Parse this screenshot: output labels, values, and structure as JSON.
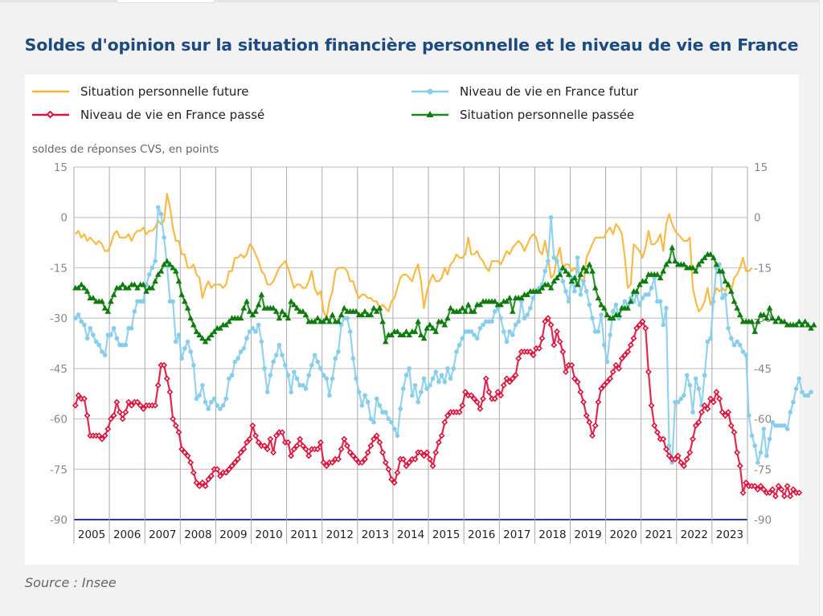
{
  "title": "Soldes d'opinion sur la situation financière personnelle et le niveau de vie en France",
  "source": "Source : Insee",
  "chart_data": {
    "type": "line",
    "title": "Soldes d'opinion sur la situation financière personnelle et le niveau de vie en France",
    "ylabel": "soldes de réponses CVS, en points",
    "xlabel": "",
    "ylim": [
      -90,
      15
    ],
    "yticks": [
      15,
      0,
      -15,
      -30,
      -45,
      -60,
      -75,
      -90
    ],
    "xticks": [
      "2005",
      "2006",
      "2007",
      "2008",
      "2009",
      "2010",
      "2011",
      "2012",
      "2013",
      "2014",
      "2015",
      "2016",
      "2017",
      "2018",
      "2019",
      "2020",
      "2021",
      "2022",
      "2023"
    ],
    "x_start": "2005-01",
    "frequency": "monthly",
    "grid": true,
    "legend": "top",
    "series": [
      {
        "name": "Situation personnelle future",
        "color": "#f9b233",
        "marker": "none",
        "values": [
          -5,
          -4,
          -6,
          -5,
          -7,
          -6,
          -7,
          -8,
          -7,
          -8,
          -10,
          -10,
          -8,
          -5,
          -4,
          -6,
          -6,
          -6,
          -5,
          -7,
          -5,
          -4,
          -4,
          -3,
          -5,
          -4,
          -4,
          -3,
          -1,
          -2,
          -1,
          7,
          3,
          -3,
          -7,
          -7,
          -11,
          -11,
          -15,
          -15,
          -14,
          -17,
          -18,
          -24,
          -21,
          -19,
          -21,
          -20,
          -20,
          -20,
          -21,
          -20,
          -16,
          -16,
          -12,
          -12,
          -11,
          -12,
          -11,
          -8,
          -9,
          -11,
          -13,
          -16,
          -17,
          -20,
          -20,
          -19,
          -17,
          -15,
          -14,
          -13,
          -15,
          -18,
          -21,
          -20,
          -20,
          -21,
          -21,
          -19,
          -16,
          -21,
          -23,
          -22,
          -28,
          -30,
          -25,
          -22,
          -16,
          -15,
          -15,
          -15,
          -16,
          -19,
          -19,
          -22,
          -24,
          -23,
          -23,
          -24,
          -24,
          -25,
          -25,
          -27,
          -26,
          -27,
          -28,
          -25,
          -24,
          -21,
          -18,
          -17,
          -17,
          -18,
          -19,
          -16,
          -14,
          -19,
          -27,
          -22,
          -19,
          -17,
          -19,
          -19,
          -18,
          -15,
          -17,
          -14,
          -13,
          -11,
          -12,
          -12,
          -11,
          -6,
          -11,
          -11,
          -10,
          -12,
          -13,
          -15,
          -16,
          -13,
          -13,
          -13,
          -14,
          -12,
          -10,
          -11,
          -9,
          -8,
          -7,
          -8,
          -10,
          -8,
          -6,
          -5,
          -6,
          -10,
          -11,
          -7,
          -12,
          -18,
          -17,
          -12,
          -9,
          -15,
          -14,
          -14,
          -16,
          -15,
          -16,
          -18,
          -20,
          -12,
          -10,
          -8,
          -6,
          -6,
          -6,
          -6,
          -4,
          -3,
          -5,
          -2,
          -3,
          -5,
          -12,
          -21,
          -20,
          -8,
          -9,
          -10,
          -12,
          -9,
          -4,
          -8,
          -8,
          -7,
          -5,
          -10,
          -2,
          1,
          -2,
          -4,
          -5,
          -6,
          -7,
          -7,
          -6,
          -21,
          -25,
          -28,
          -27,
          -25,
          -21,
          -26,
          -24,
          -21,
          -22,
          -21,
          -22,
          -20,
          -22,
          -18,
          -17,
          -15,
          -12,
          -16,
          -16,
          -15
        ]
      },
      {
        "name": "Niveau de vie en France futur",
        "color": "#87ceeb",
        "marker": "circle",
        "values": [
          -30,
          -29,
          -31,
          -32,
          -36,
          -33,
          -35,
          -37,
          -38,
          -40,
          -41,
          -35,
          -35,
          -33,
          -36,
          -38,
          -38,
          -38,
          -33,
          -33,
          -28,
          -25,
          -25,
          -25,
          -20,
          -17,
          -15,
          -13,
          3,
          1,
          -6,
          -14,
          -25,
          -25,
          -37,
          -35,
          -42,
          -39,
          -37,
          -40,
          -44,
          -54,
          -53,
          -50,
          -55,
          -57,
          -55,
          -54,
          -56,
          -57,
          -56,
          -54,
          -48,
          -47,
          -43,
          -42,
          -40,
          -39,
          -36,
          -34,
          -33,
          -34,
          -32,
          -37,
          -45,
          -52,
          -47,
          -43,
          -41,
          -38,
          -41,
          -44,
          -47,
          -52,
          -46,
          -48,
          -50,
          -50,
          -51,
          -47,
          -44,
          -41,
          -43,
          -45,
          -47,
          -48,
          -53,
          -48,
          -42,
          -40,
          -32,
          -30,
          -30,
          -34,
          -42,
          -48,
          -52,
          -56,
          -53,
          -55,
          -60,
          -61,
          -54,
          -56,
          -58,
          -58,
          -60,
          -61,
          -63,
          -65,
          -57,
          -51,
          -47,
          -45,
          -53,
          -50,
          -55,
          -52,
          -48,
          -51,
          -50,
          -48,
          -46,
          -49,
          -47,
          -49,
          -45,
          -48,
          -45,
          -40,
          -38,
          -36,
          -34,
          -34,
          -34,
          -35,
          -36,
          -33,
          -32,
          -31,
          -31,
          -31,
          -28,
          -27,
          -30,
          -34,
          -37,
          -34,
          -35,
          -32,
          -31,
          -25,
          -30,
          -29,
          -27,
          -24,
          -22,
          -21,
          -20,
          -16,
          -13,
          0,
          -12,
          -13,
          -16,
          -19,
          -22,
          -25,
          -18,
          -22,
          -12,
          -23,
          -19,
          -22,
          -26,
          -30,
          -34,
          -34,
          -29,
          -38,
          -43,
          -35,
          -28,
          -26,
          -30,
          -27,
          -25,
          -26,
          -24,
          -25,
          -23,
          -26,
          -24,
          -23,
          -23,
          -21,
          -18,
          -25,
          -25,
          -32,
          -27,
          -68,
          -73,
          -55,
          -55,
          -54,
          -53,
          -47,
          -50,
          -58,
          -48,
          -51,
          -56,
          -47,
          -37,
          -36,
          -25,
          -15,
          -14,
          -24,
          -23,
          -33,
          -36,
          -38,
          -37,
          -38,
          -40,
          -41,
          -59,
          -65,
          -68,
          -73,
          -70,
          -63,
          -71,
          -66,
          -61,
          -62,
          -62,
          -62,
          -62,
          -63,
          -58,
          -55,
          -51,
          -48,
          -52,
          -53,
          -53,
          -52
        ]
      },
      {
        "name": "Niveau de vie en France passé",
        "color": "#dc143c",
        "marker": "diamond",
        "values": [
          -56,
          -53,
          -54,
          -54,
          -59,
          -65,
          -65,
          -65,
          -65,
          -66,
          -65,
          -63,
          -60,
          -59,
          -55,
          -58,
          -60,
          -58,
          -55,
          -56,
          -55,
          -55,
          -56,
          -57,
          -56,
          -56,
          -56,
          -56,
          -50,
          -44,
          -44,
          -48,
          -52,
          -60,
          -62,
          -64,
          -69,
          -70,
          -71,
          -73,
          -76,
          -79,
          -80,
          -79,
          -80,
          -78,
          -77,
          -75,
          -75,
          -77,
          -76,
          -76,
          -75,
          -74,
          -73,
          -72,
          -70,
          -69,
          -67,
          -66,
          -62,
          -65,
          -67,
          -68,
          -68,
          -69,
          -66,
          -70,
          -65,
          -64,
          -64,
          -67,
          -67,
          -71,
          -69,
          -68,
          -66,
          -68,
          -69,
          -71,
          -69,
          -69,
          -69,
          -67,
          -73,
          -74,
          -73,
          -73,
          -72,
          -72,
          -69,
          -66,
          -68,
          -70,
          -71,
          -72,
          -73,
          -73,
          -72,
          -70,
          -68,
          -66,
          -65,
          -67,
          -70,
          -73,
          -75,
          -78,
          -79,
          -76,
          -72,
          -72,
          -74,
          -73,
          -72,
          -72,
          -70,
          -70,
          -71,
          -70,
          -72,
          -74,
          -70,
          -67,
          -65,
          -61,
          -59,
          -58,
          -58,
          -58,
          -58,
          -56,
          -52,
          -53,
          -53,
          -54,
          -55,
          -57,
          -54,
          -48,
          -52,
          -54,
          -54,
          -52,
          -53,
          -50,
          -48,
          -49,
          -48,
          -47,
          -42,
          -40,
          -40,
          -40,
          -40,
          -41,
          -39,
          -39,
          -36,
          -31,
          -30,
          -32,
          -38,
          -34,
          -37,
          -40,
          -46,
          -44,
          -44,
          -48,
          -49,
          -52,
          -55,
          -59,
          -61,
          -65,
          -62,
          -55,
          -51,
          -50,
          -49,
          -48,
          -46,
          -44,
          -45,
          -42,
          -41,
          -40,
          -38,
          -36,
          -33,
          -32,
          -31,
          -33,
          -46,
          -56,
          -62,
          -64,
          -66,
          -66,
          -69,
          -71,
          -72,
          -72,
          -71,
          -73,
          -74,
          -72,
          -70,
          -66,
          -62,
          -61,
          -58,
          -56,
          -57,
          -54,
          -55,
          -52,
          -54,
          -58,
          -59,
          -58,
          -62,
          -64,
          -70,
          -74,
          -82,
          -79,
          -80,
          -80,
          -80,
          -81,
          -80,
          -81,
          -82,
          -82,
          -81,
          -83,
          -80,
          -81,
          -83,
          -80,
          -83,
          -81,
          -82,
          -82
        ]
      },
      {
        "name": "Situation personnelle passée",
        "color": "#1a8a1a",
        "marker": "triangle",
        "values": [
          -21,
          -21,
          -20,
          -21,
          -22,
          -24,
          -24,
          -25,
          -25,
          -25,
          -27,
          -28,
          -25,
          -23,
          -21,
          -21,
          -20,
          -21,
          -21,
          -20,
          -20,
          -21,
          -20,
          -20,
          -22,
          -21,
          -21,
          -19,
          -17,
          -16,
          -14,
          -13,
          -14,
          -15,
          -16,
          -19,
          -23,
          -25,
          -27,
          -30,
          -32,
          -34,
          -35,
          -36,
          -37,
          -36,
          -35,
          -34,
          -33,
          -33,
          -32,
          -32,
          -31,
          -30,
          -30,
          -30,
          -30,
          -27,
          -25,
          -28,
          -29,
          -28,
          -26,
          -23,
          -27,
          -27,
          -27,
          -27,
          -28,
          -30,
          -28,
          -29,
          -30,
          -25,
          -26,
          -27,
          -28,
          -28,
          -29,
          -31,
          -31,
          -31,
          -30,
          -31,
          -31,
          -30,
          -31,
          -29,
          -31,
          -31,
          -29,
          -27,
          -28,
          -28,
          -28,
          -28,
          -29,
          -29,
          -28,
          -29,
          -29,
          -27,
          -28,
          -27,
          -31,
          -37,
          -35,
          -35,
          -34,
          -34,
          -35,
          -35,
          -34,
          -35,
          -34,
          -34,
          -31,
          -35,
          -36,
          -33,
          -32,
          -33,
          -34,
          -31,
          -31,
          -32,
          -30,
          -27,
          -28,
          -28,
          -28,
          -27,
          -28,
          -26,
          -28,
          -28,
          -26,
          -26,
          -25,
          -25,
          -25,
          -25,
          -25,
          -26,
          -26,
          -25,
          -25,
          -24,
          -28,
          -24,
          -24,
          -24,
          -23,
          -23,
          -22,
          -22,
          -22,
          -22,
          -21,
          -20,
          -20,
          -21,
          -19,
          -18,
          -17,
          -15,
          -16,
          -17,
          -19,
          -18,
          -20,
          -17,
          -15,
          -16,
          -14,
          -16,
          -21,
          -24,
          -26,
          -27,
          -29,
          -30,
          -30,
          -29,
          -29,
          -27,
          -27,
          -27,
          -25,
          -22,
          -22,
          -20,
          -19,
          -19,
          -17,
          -17,
          -17,
          -17,
          -18,
          -16,
          -14,
          -13,
          -9,
          -13,
          -14,
          -14,
          -14,
          -15,
          -15,
          -15,
          -16,
          -14,
          -13,
          -12,
          -11,
          -11,
          -12,
          -14,
          -16,
          -16,
          -19,
          -20,
          -22,
          -25,
          -27,
          -29,
          -31,
          -31,
          -31,
          -31,
          -34,
          -31,
          -29,
          -29,
          -30,
          -27,
          -30,
          -31,
          -30,
          -31,
          -31,
          -32,
          -32,
          -32,
          -32,
          -31,
          -32,
          -31,
          -32,
          -33,
          -32
        ]
      }
    ]
  }
}
